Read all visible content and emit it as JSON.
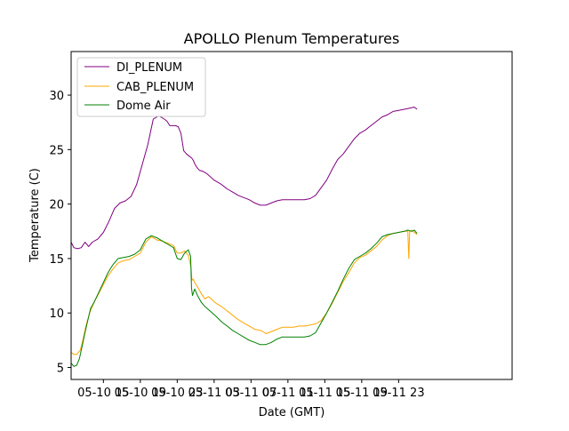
{
  "chart_data": {
    "type": "line",
    "title": "APOLLO Plenum Temperatures",
    "xlabel": "Date (GMT)",
    "ylabel": "Temperature (C)",
    "xlim": [
      11.5,
      59.3
    ],
    "ylim": [
      3.9,
      34.0
    ],
    "grid": false,
    "legend_position": "top-left",
    "x_units": "hours since 05-10 00 GMT",
    "xticks": [
      {
        "value": 15,
        "label": "05-10 15"
      },
      {
        "value": 19,
        "label": "05-10 19"
      },
      {
        "value": 23,
        "label": "05-10 23"
      },
      {
        "value": 27,
        "label": "05-11 03"
      },
      {
        "value": 31,
        "label": "05-11 07"
      },
      {
        "value": 35,
        "label": "05-11 11"
      },
      {
        "value": 39,
        "label": "05-11 15"
      },
      {
        "value": 43,
        "label": "05-11 19"
      },
      {
        "value": 47,
        "label": "05-11 23"
      }
    ],
    "yticks": [
      {
        "value": 5,
        "label": "5"
      },
      {
        "value": 10,
        "label": "10"
      },
      {
        "value": 15,
        "label": "15"
      },
      {
        "value": 20,
        "label": "20"
      },
      {
        "value": 25,
        "label": "25"
      },
      {
        "value": 30,
        "label": "30"
      }
    ],
    "series": [
      {
        "name": "DI_PLENUM",
        "color": "#800080",
        "x": [
          11.5,
          11.8,
          12.2,
          12.6,
          13.0,
          13.4,
          13.8,
          14.4,
          15.0,
          15.6,
          16.2,
          16.8,
          17.4,
          18.0,
          18.6,
          19.2,
          19.8,
          20.4,
          21.0,
          21.6,
          21.9,
          22.2,
          22.5,
          22.8,
          23.1,
          23.4,
          23.7,
          24.0,
          24.3,
          24.6,
          24.75,
          24.9,
          25.1,
          25.4,
          25.8,
          26.2,
          26.6,
          27.0,
          27.4,
          27.8,
          28.4,
          29.0,
          29.6,
          30.2,
          30.8,
          31.4,
          32.0,
          32.6,
          33.2,
          33.8,
          34.4,
          35.0,
          35.6,
          36.2,
          36.8,
          37.4,
          38.0,
          38.6,
          39.2,
          39.8,
          40.4,
          41.0,
          41.6,
          42.2,
          42.8,
          43.4,
          44.0,
          44.6,
          45.2,
          45.8,
          46.4,
          47.0,
          47.6,
          48.2,
          48.7,
          49.0
        ],
        "y": [
          16.5,
          16.0,
          15.9,
          16.0,
          16.5,
          16.1,
          16.5,
          16.8,
          17.4,
          18.4,
          19.6,
          20.1,
          20.3,
          20.7,
          21.8,
          23.6,
          25.4,
          27.8,
          28.1,
          27.8,
          27.6,
          27.2,
          27.2,
          27.2,
          27.1,
          26.5,
          24.9,
          24.6,
          24.4,
          24.2,
          24.0,
          23.7,
          23.4,
          23.1,
          23.0,
          22.8,
          22.5,
          22.2,
          22.0,
          21.8,
          21.4,
          21.1,
          20.8,
          20.6,
          20.4,
          20.1,
          19.9,
          19.9,
          20.1,
          20.3,
          20.4,
          20.4,
          20.4,
          20.4,
          20.4,
          20.5,
          20.8,
          21.5,
          22.2,
          23.2,
          24.1,
          24.6,
          25.3,
          26.0,
          26.5,
          26.8,
          27.2,
          27.6,
          28.0,
          28.2,
          28.5,
          28.6,
          28.7,
          28.8,
          28.9,
          28.7
        ]
      },
      {
        "name": "CAB_PLENUM",
        "color": "#ffa500",
        "x": [
          11.5,
          11.8,
          12.1,
          12.5,
          12.8,
          13.1,
          13.5,
          14.0,
          14.5,
          15.0,
          15.5,
          16.0,
          16.6,
          17.2,
          17.8,
          18.4,
          19.0,
          19.6,
          20.2,
          20.8,
          21.4,
          22.0,
          22.6,
          23.0,
          23.4,
          23.8,
          24.2,
          24.5,
          24.6,
          24.75,
          24.9,
          25.2,
          25.6,
          26.0,
          26.4,
          26.8,
          27.2,
          27.8,
          28.4,
          29.0,
          29.6,
          30.2,
          30.8,
          31.4,
          32.0,
          32.3,
          32.6,
          33.2,
          33.8,
          34.4,
          35.0,
          35.6,
          36.2,
          36.8,
          37.4,
          38.0,
          38.6,
          39.2,
          39.8,
          40.4,
          41.0,
          41.6,
          42.2,
          42.8,
          43.4,
          44.0,
          44.6,
          45.2,
          45.8,
          46.4,
          47.0,
          47.6,
          48.0,
          48.1,
          48.2,
          48.4,
          48.7,
          49.0
        ],
        "y": [
          6.4,
          6.2,
          6.2,
          6.6,
          7.6,
          8.8,
          10.0,
          11.0,
          11.8,
          12.6,
          13.4,
          14.0,
          14.6,
          14.8,
          14.9,
          15.2,
          15.5,
          16.5,
          17.0,
          16.7,
          16.6,
          16.4,
          16.2,
          15.5,
          15.5,
          15.7,
          15.3,
          14.2,
          13.0,
          13.1,
          12.8,
          12.4,
          11.8,
          11.3,
          11.5,
          11.2,
          10.9,
          10.6,
          10.2,
          9.8,
          9.4,
          9.1,
          8.8,
          8.5,
          8.4,
          8.3,
          8.1,
          8.3,
          8.5,
          8.7,
          8.7,
          8.7,
          8.8,
          8.8,
          8.9,
          9.0,
          9.3,
          10.0,
          10.9,
          11.9,
          12.9,
          13.7,
          14.6,
          15.1,
          15.3,
          15.7,
          16.1,
          16.7,
          17.1,
          17.3,
          17.4,
          17.5,
          17.5,
          15.0,
          17.5,
          17.6,
          17.4,
          17.2
        ]
      },
      {
        "name": "Dome Air",
        "color": "#008000",
        "x": [
          11.5,
          11.8,
          12.1,
          12.4,
          12.7,
          13.0,
          13.3,
          13.6,
          14.0,
          14.5,
          15.0,
          15.5,
          16.0,
          16.6,
          17.2,
          17.8,
          18.4,
          19.0,
          19.6,
          20.2,
          20.8,
          21.4,
          22.0,
          22.6,
          23.0,
          23.4,
          23.8,
          24.2,
          24.45,
          24.55,
          24.65,
          24.9,
          25.2,
          25.6,
          26.0,
          26.4,
          26.8,
          27.2,
          27.8,
          28.4,
          29.0,
          29.6,
          30.2,
          30.8,
          31.4,
          32.0,
          32.6,
          33.2,
          33.8,
          34.4,
          35.0,
          35.6,
          36.2,
          36.8,
          37.4,
          38.0,
          38.6,
          39.2,
          39.8,
          40.4,
          41.0,
          41.6,
          42.2,
          42.8,
          43.4,
          44.0,
          44.6,
          45.2,
          45.8,
          46.4,
          47.0,
          47.6,
          48.0,
          48.4,
          48.7,
          49.0
        ],
        "y": [
          5.4,
          5.1,
          5.2,
          5.8,
          7.0,
          8.2,
          9.3,
          10.4,
          11.0,
          11.9,
          12.8,
          13.7,
          14.4,
          15.0,
          15.1,
          15.2,
          15.4,
          15.8,
          16.8,
          17.1,
          16.9,
          16.6,
          16.3,
          16.0,
          15.0,
          14.9,
          15.5,
          15.8,
          15.2,
          12.3,
          11.6,
          12.2,
          11.6,
          11.0,
          10.6,
          10.3,
          10.0,
          9.7,
          9.2,
          8.8,
          8.4,
          8.1,
          7.8,
          7.5,
          7.3,
          7.1,
          7.1,
          7.3,
          7.6,
          7.8,
          7.8,
          7.8,
          7.8,
          7.8,
          7.9,
          8.2,
          9.1,
          10.0,
          11.0,
          12.0,
          13.1,
          14.1,
          14.9,
          15.2,
          15.5,
          15.9,
          16.4,
          17.0,
          17.2,
          17.3,
          17.4,
          17.5,
          17.6,
          17.5,
          17.6,
          17.3
        ]
      }
    ]
  }
}
